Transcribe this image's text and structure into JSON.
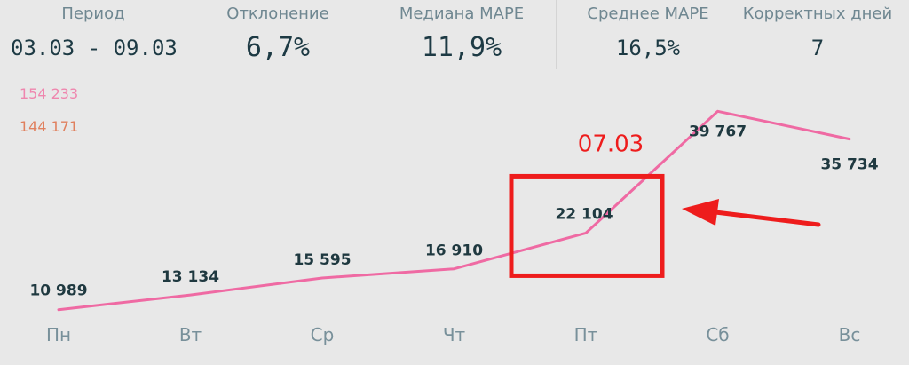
{
  "kpis": [
    {
      "label": "Период",
      "value": "03.03 - 09.03"
    },
    {
      "label": "Отклонение",
      "value": "6,7%"
    },
    {
      "label": "Медиана MAPE",
      "value": "11,9%"
    },
    {
      "label": "Среднее MAPE",
      "value": "16,5%"
    },
    {
      "label": "Корректных дней",
      "value": "7"
    }
  ],
  "legend": [
    {
      "text": "154 233",
      "color": "#ef86ae"
    },
    {
      "text": "144 171",
      "color": "#e0805e"
    }
  ],
  "colors": {
    "line": "#ef6aa3",
    "annotation": "#ee1c1c"
  },
  "annotation": {
    "label": "07.03",
    "target_category": "Пт",
    "shape": "rectangle-with-arrow"
  },
  "chart_data": {
    "type": "line",
    "categories": [
      "Пн",
      "Вт",
      "Ср",
      "Чт",
      "Пт",
      "Сб",
      "Вс"
    ],
    "series": [
      {
        "values": [
          10989,
          13134,
          15595,
          16910,
          22104,
          39767,
          35734
        ],
        "labels": [
          "10 989",
          "13 134",
          "15 595",
          "16 910",
          "22 104",
          "39 767",
          "35 734"
        ]
      }
    ],
    "title": "",
    "xlabel": "",
    "ylabel": "",
    "ylim": [
      0,
      42000
    ],
    "grid": false
  }
}
